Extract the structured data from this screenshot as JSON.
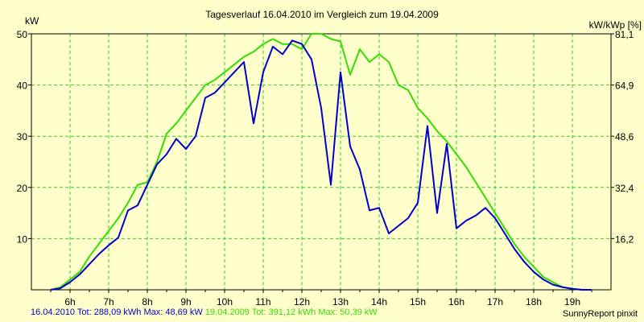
{
  "chart_data": {
    "type": "line",
    "title": "Tagesverlauf 16.04.2010 im Vergleich zum 19.04.2009",
    "ylabel_left": "kW",
    "ylabel_right": "kW/kWp [%]",
    "ylim": [
      0,
      50
    ],
    "y_ticks_left": [
      "10",
      "20",
      "30",
      "40",
      "50"
    ],
    "y_ticks_right": [
      "16,2",
      "32,4",
      "48,6",
      "64,9",
      "81,1"
    ],
    "xlim": [
      5.0,
      20.0
    ],
    "x_ticks": [
      "6h",
      "7h",
      "8h",
      "9h",
      "10h",
      "11h",
      "12h",
      "13h",
      "14h",
      "15h",
      "16h",
      "17h",
      "18h",
      "19h"
    ],
    "grid": true,
    "colors": {
      "background": "#ffffcc",
      "grid": "#33cc33",
      "series_2010": "#0000cc",
      "series_2009": "#33dd00"
    },
    "series": [
      {
        "name": "16.04.2010",
        "color": "#0000cc",
        "x": [
          5.5,
          5.75,
          6.0,
          6.25,
          6.5,
          6.75,
          7.0,
          7.25,
          7.5,
          7.75,
          8.0,
          8.25,
          8.5,
          8.75,
          9.0,
          9.25,
          9.5,
          9.75,
          10.0,
          10.25,
          10.5,
          10.75,
          11.0,
          11.25,
          11.5,
          11.75,
          12.0,
          12.25,
          12.5,
          12.75,
          13.0,
          13.25,
          13.5,
          13.75,
          14.0,
          14.25,
          14.5,
          14.75,
          15.0,
          15.25,
          15.5,
          15.75,
          16.0,
          16.25,
          16.5,
          16.75,
          17.0,
          17.25,
          17.5,
          17.75,
          18.0,
          18.25,
          18.5,
          18.75,
          19.0,
          19.25,
          19.5
        ],
        "values": [
          0,
          0.3,
          1.5,
          3.0,
          5.0,
          7.0,
          8.7,
          10.2,
          15.5,
          16.5,
          20.5,
          24.5,
          26.5,
          29.5,
          27.5,
          30.0,
          37.5,
          38.5,
          40.5,
          42.5,
          44.5,
          32.5,
          42.5,
          47.5,
          46.0,
          48.7,
          48.0,
          45.0,
          35.5,
          20.5,
          42.5,
          28.0,
          23.5,
          15.5,
          16.0,
          11.0,
          12.5,
          14.0,
          17.0,
          32.0,
          15.0,
          28.5,
          12.0,
          13.5,
          14.5,
          16.0,
          14.0,
          11.0,
          8.0,
          5.5,
          3.5,
          2.0,
          1.0,
          0.5,
          0.2,
          0,
          0
        ]
      },
      {
        "name": "19.04.2009",
        "color": "#33dd00",
        "x": [
          5.5,
          5.75,
          6.0,
          6.25,
          6.5,
          6.75,
          7.0,
          7.25,
          7.5,
          7.75,
          8.0,
          8.25,
          8.5,
          8.75,
          9.0,
          9.25,
          9.5,
          9.75,
          10.0,
          10.25,
          10.5,
          10.75,
          11.0,
          11.25,
          11.5,
          11.75,
          12.0,
          12.25,
          12.5,
          12.75,
          13.0,
          13.25,
          13.5,
          13.75,
          14.0,
          14.25,
          14.5,
          14.75,
          15.0,
          15.25,
          15.5,
          15.75,
          16.0,
          16.25,
          16.5,
          16.75,
          17.0,
          17.25,
          17.5,
          17.75,
          18.0,
          18.25,
          18.5,
          18.75,
          19.0,
          19.25,
          19.5
        ],
        "values": [
          0,
          0.5,
          2.0,
          3.5,
          6.5,
          9.0,
          11.5,
          14.0,
          17.0,
          20.5,
          21.0,
          25.0,
          30.5,
          32.5,
          35.0,
          37.5,
          40.0,
          41.0,
          42.5,
          44.0,
          45.5,
          46.5,
          48.0,
          49.0,
          48.0,
          48.0,
          47.0,
          50.0,
          50.0,
          49.0,
          48.5,
          42.0,
          47.0,
          44.5,
          46.0,
          44.5,
          40.0,
          39.0,
          35.5,
          33.5,
          31.0,
          29.0,
          26.5,
          24.0,
          21.0,
          18.0,
          15.0,
          12.0,
          9.0,
          6.5,
          4.5,
          2.5,
          1.5,
          0.5,
          0.2,
          0,
          0
        ]
      }
    ]
  },
  "footer": {
    "series_2010": "16.04.2010 Tot: 288,09 kWh Max: 48,69 kW",
    "series_2009": "19.04.2009 Tot: 391,12 kWh Max: 50,39 kW",
    "credit": "SunnyReport pinxit"
  }
}
